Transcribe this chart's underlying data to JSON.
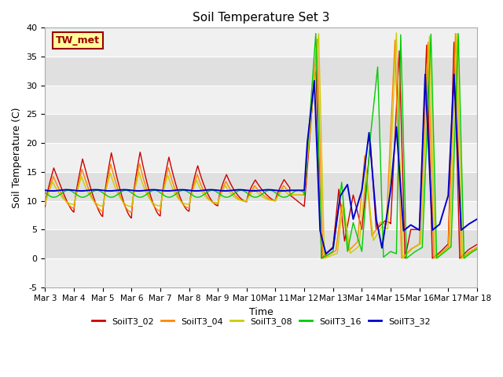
{
  "title": "Soil Temperature Set 3",
  "xlabel": "Time",
  "ylabel": "Soil Temperature (C)",
  "ylim": [
    -5,
    40
  ],
  "yticks": [
    -5,
    0,
    5,
    10,
    15,
    20,
    25,
    30,
    35,
    40
  ],
  "xtick_labels": [
    "Mar 3",
    "Mar 4",
    "Mar 5",
    "Mar 6",
    "Mar 7",
    "Mar 8",
    "Mar 9",
    "Mar 10",
    "Mar 11",
    "Mar 12",
    "Mar 13",
    "Mar 14",
    "Mar 15",
    "Mar 16",
    "Mar 17",
    "Mar 18"
  ],
  "series_colors": {
    "SoilT3_02": "#cc0000",
    "SoilT3_04": "#ff8800",
    "SoilT3_08": "#cccc00",
    "SoilT3_16": "#00cc00",
    "SoilT3_32": "#0000cc"
  },
  "tw_met_label": "TW_met",
  "legend_colors": [
    "#cc0000",
    "#ff8800",
    "#cccc00",
    "#00cc00",
    "#0000cc"
  ],
  "legend_labels": [
    "SoilT3_02",
    "SoilT3_04",
    "SoilT3_08",
    "SoilT3_16",
    "SoilT3_32"
  ],
  "bg_band_light": "#f0f0f0",
  "bg_band_dark": "#e0e0e0"
}
